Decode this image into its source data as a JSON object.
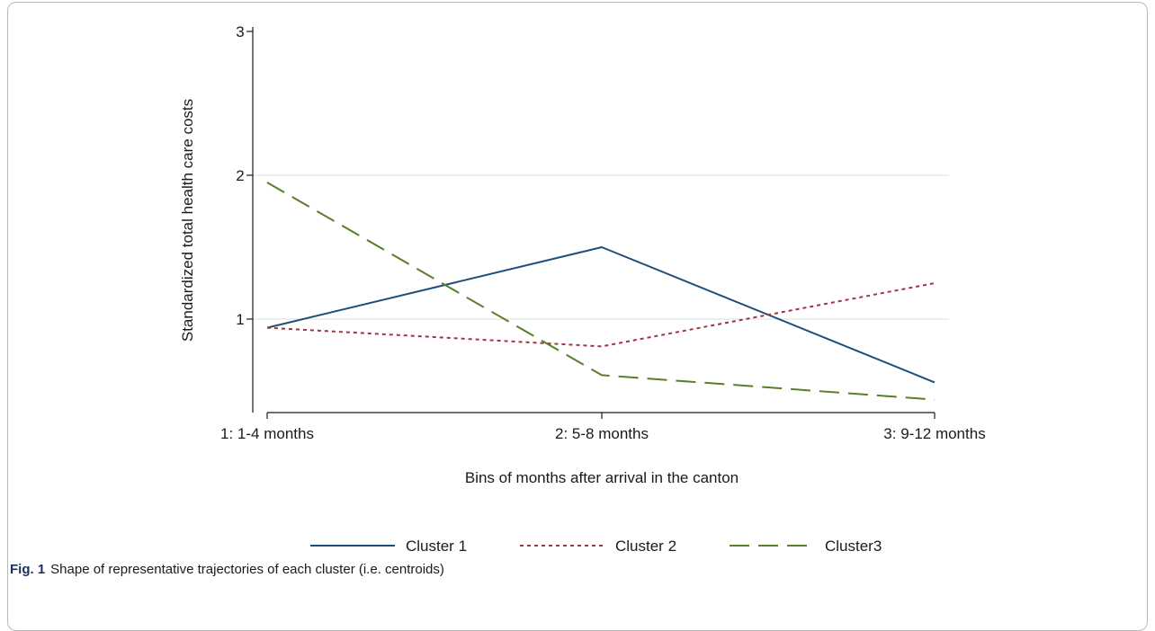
{
  "caption": {
    "label": "Fig. 1",
    "text": "Shape of representative trajectories of each cluster (i.e. centroids)"
  },
  "chart_data": {
    "type": "line",
    "title": "",
    "xlabel": "Bins of months after arrival in the canton",
    "ylabel": "Standardized total health care costs",
    "categories": [
      "1: 1-4 months",
      "2: 5-8 months",
      "3: 9-12 months"
    ],
    "ylim": [
      0.35,
      3.1
    ],
    "yticks": [
      1,
      2,
      3
    ],
    "grid": true,
    "legend_position": "bottom",
    "series": [
      {
        "name": "Cluster 1",
        "values": [
          0.94,
          1.5,
          0.56
        ],
        "color": "#1f4e79",
        "dash": "solid"
      },
      {
        "name": "Cluster 2",
        "values": [
          0.94,
          0.81,
          1.25
        ],
        "color": "#a0343f",
        "dash": "dotted"
      },
      {
        "name": "Cluster3",
        "values": [
          1.95,
          0.61,
          0.44
        ],
        "color": "#5a7d2a",
        "dash": "longdash"
      }
    ]
  }
}
